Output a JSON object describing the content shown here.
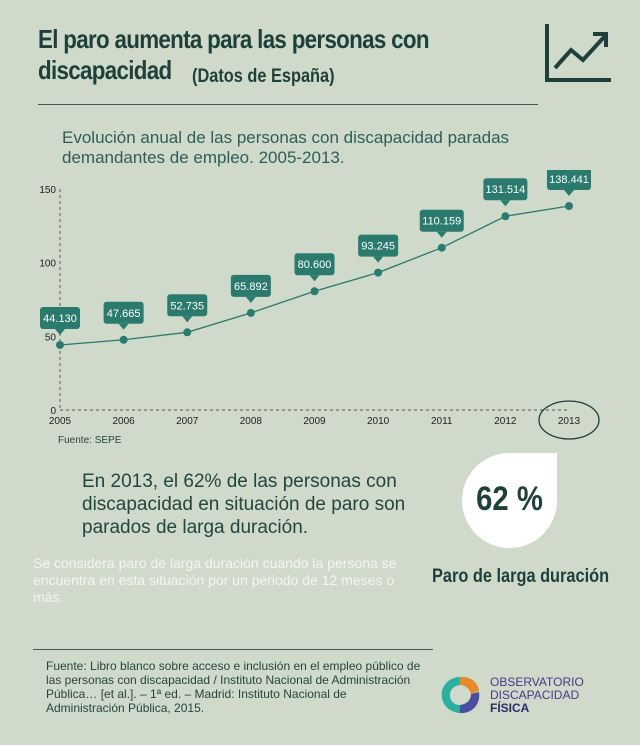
{
  "header": {
    "title": "El paro aumenta para las personas con discapacidad",
    "subtitle": "(Datos de España)",
    "icon": "trend-up-chart-icon"
  },
  "chart_data": {
    "type": "line",
    "title": "Evolución anual de las personas con discapacidad paradas demandantes de empleo. 2005-2013.",
    "categories": [
      "2005",
      "2006",
      "2007",
      "2008",
      "2009",
      "2010",
      "2011",
      "2012",
      "2013"
    ],
    "values": [
      44.13,
      47.665,
      52.735,
      65.892,
      80.6,
      93.245,
      110.159,
      131.514,
      138.441
    ],
    "data_labels": [
      "44.130",
      "47.665",
      "52.735",
      "65.892",
      "80.600",
      "93.245",
      "110.159",
      "131.514",
      "138.441"
    ],
    "yticks": [
      "0",
      "50",
      "100",
      "150"
    ],
    "ylim": [
      0,
      150
    ],
    "highlight": "2013",
    "color": "#2a7a6e",
    "source": "Fuente: SEPE"
  },
  "stat": {
    "text": "En 2013, el 62% de las personas con discapacidad en situación de paro son parados de larga duración.",
    "note": "Se considera paro de larga duración cuando la persona se encuentra en esta situación por un periodo de 12 meses o más.",
    "value": "62 %",
    "label": "Paro de larga duración"
  },
  "footer": {
    "reference": "Fuente: Libro blanco sobre acceso e inclusión en el empleo público de las personas con discapacidad / Instituto Nacional de Administración Pública… [et al.]. – 1ª ed. – Madrid: Instituto Nacional de Administración Pública, 2015.",
    "logo_line1": "OBSERVATORIO",
    "logo_line2": "DISCAPACIDAD",
    "logo_line3": "FÍSICA"
  }
}
